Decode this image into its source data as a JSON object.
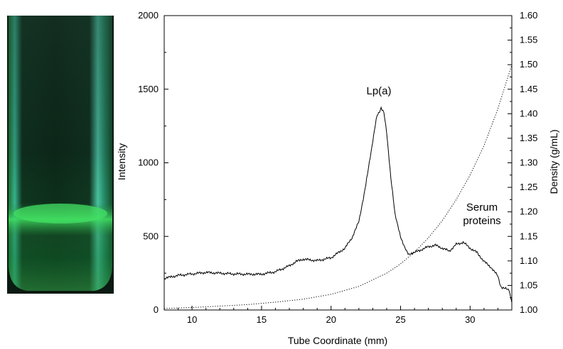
{
  "chart_data": {
    "type": "line",
    "xlabel": "Tube Coordinate (mm)",
    "ylabel": "Intensity",
    "y2label": "Density (g/mL)",
    "xlim": [
      8,
      33
    ],
    "ylim": [
      0,
      2000
    ],
    "y2lim": [
      1.0,
      1.6
    ],
    "x_ticks": [
      10,
      15,
      20,
      25,
      30
    ],
    "y_ticks": [
      0,
      500,
      1000,
      1500,
      2000
    ],
    "y2_ticks": [
      "1.00",
      "1.05",
      "1.10",
      "1.15",
      "1.20",
      "1.25",
      "1.30",
      "1.35",
      "1.40",
      "1.45",
      "1.50",
      "1.55",
      "1.60"
    ],
    "grid": false,
    "series": [
      {
        "axis": "left",
        "style": "solid",
        "color": "#000000",
        "x": [
          8,
          9,
          10,
          11,
          12,
          13,
          14,
          15,
          16,
          17,
          17.5,
          18,
          18.5,
          19,
          20,
          21,
          21.5,
          22,
          22.5,
          23,
          23.3,
          23.6,
          23.8,
          24.0,
          24.3,
          24.6,
          25.0,
          25.3,
          25.6,
          26.0,
          26.5,
          27.0,
          27.5,
          28.0,
          28.5,
          29.0,
          29.5,
          30.0,
          30.5,
          31.0,
          31.5,
          32.0,
          32.2,
          32.5,
          32.8,
          33.0
        ],
        "y": [
          215,
          235,
          245,
          255,
          250,
          245,
          243,
          243,
          260,
          300,
          330,
          345,
          340,
          335,
          355,
          420,
          490,
          600,
          850,
          1150,
          1320,
          1370,
          1340,
          1200,
          900,
          650,
          500,
          420,
          380,
          390,
          410,
          430,
          440,
          420,
          400,
          445,
          460,
          420,
          390,
          330,
          290,
          230,
          160,
          145,
          140,
          50
        ]
      },
      {
        "axis": "right",
        "style": "dotted",
        "color": "#000000",
        "x": [
          8,
          10,
          12,
          14,
          16,
          18,
          20,
          22,
          24,
          25,
          26,
          27,
          28,
          29,
          30,
          31,
          32,
          33
        ],
        "y": [
          1.003,
          1.005,
          1.008,
          1.011,
          1.016,
          1.022,
          1.032,
          1.048,
          1.075,
          1.094,
          1.118,
          1.147,
          1.182,
          1.225,
          1.275,
          1.335,
          1.41,
          1.5
        ]
      }
    ],
    "annotations": [
      {
        "text": "Lp(a)",
        "x": 24.2,
        "y": 1500
      },
      {
        "text": "Serum",
        "x": 31.6,
        "y": 680
      },
      {
        "text": "proteins",
        "x": 31.3,
        "y": 560
      }
    ]
  },
  "tube_photo": {
    "colors": {
      "band": "#3ed85e",
      "edge": "#6ef4cf",
      "background": "#0b1a12"
    }
  }
}
